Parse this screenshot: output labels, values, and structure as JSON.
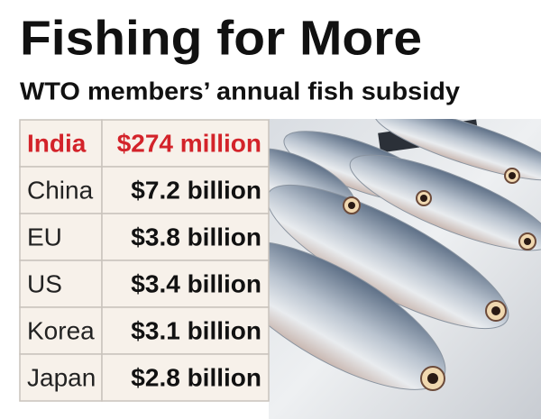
{
  "header": {
    "title": "Fishing for More",
    "subtitle": "WTO members’ annual fish subsidy"
  },
  "table": {
    "rows": [
      [
        "India",
        "$274 million"
      ],
      [
        "China",
        "$7.2 billion"
      ],
      [
        "EU",
        "$3.8 billion"
      ],
      [
        "US",
        "$3.4 billion"
      ],
      [
        "Korea",
        "$3.1 billion"
      ],
      [
        "Japan",
        "$2.8 billion"
      ]
    ]
  }
}
